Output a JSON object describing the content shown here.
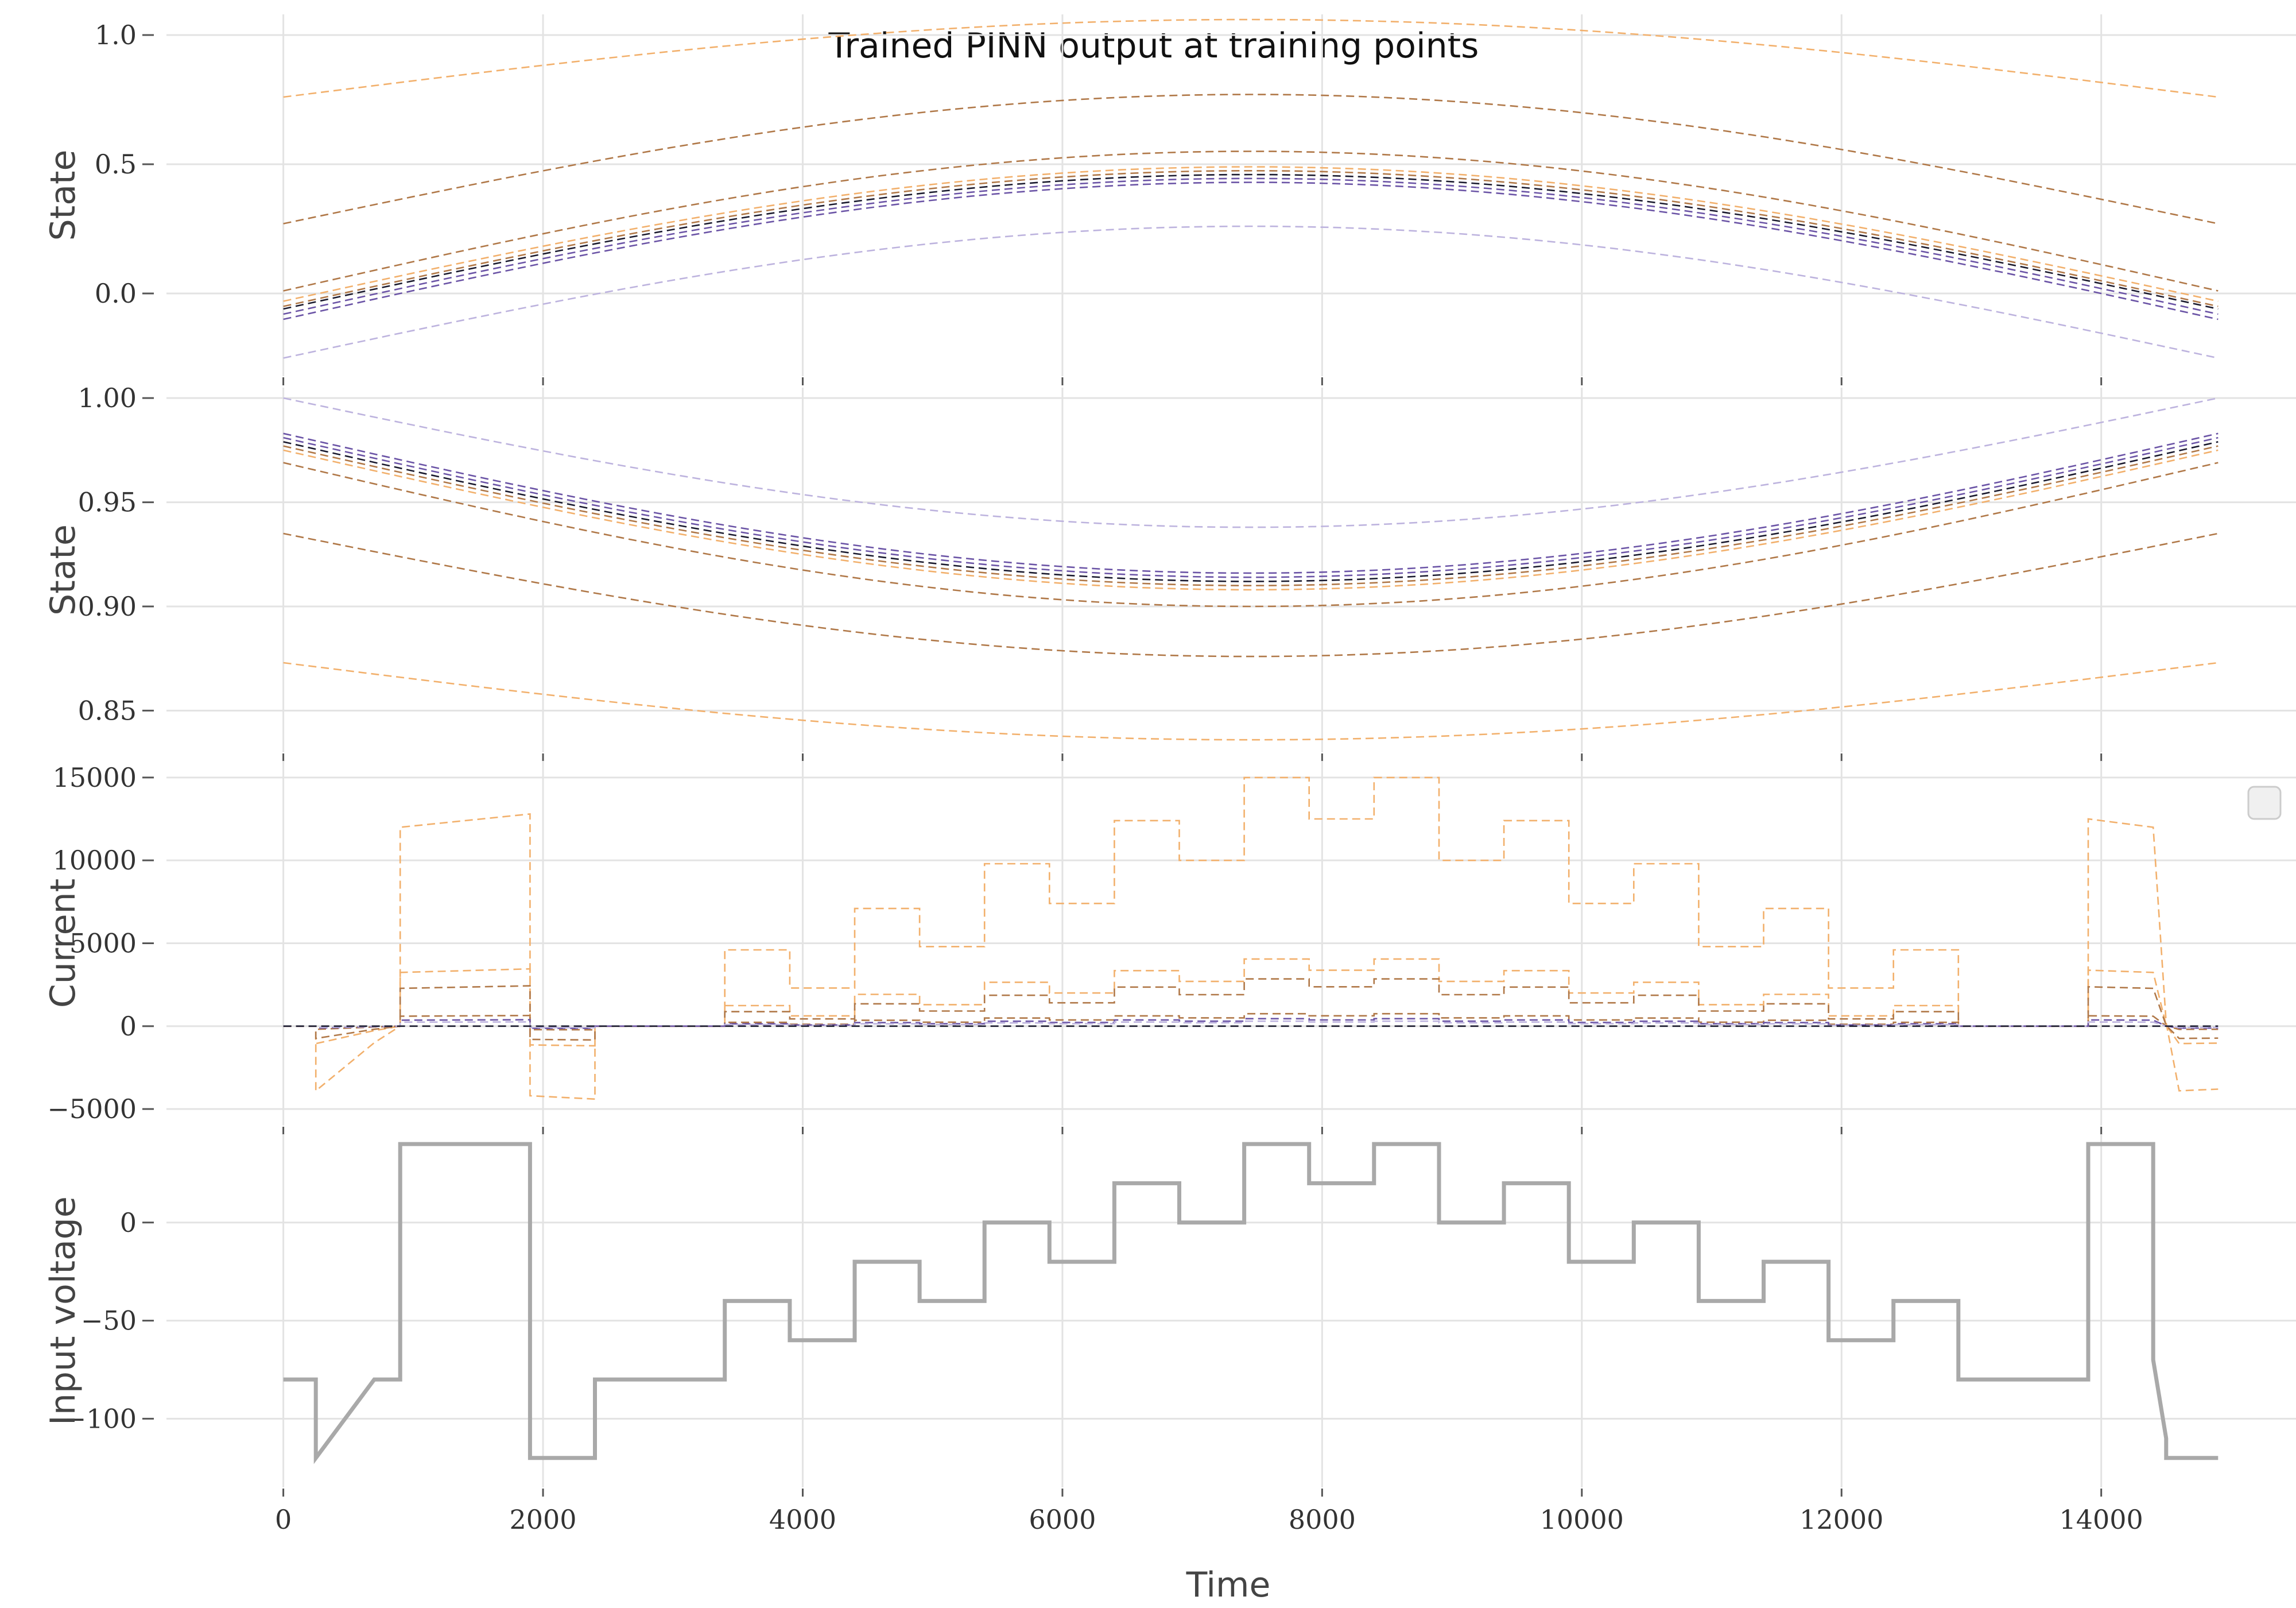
{
  "chart_data": {
    "type": "line",
    "title": "Trained PINN output at training points",
    "xlabel": "Time",
    "xlim": [
      -900,
      15500
    ],
    "x_ticks": [
      "0",
      "2000",
      "4000",
      "6000",
      "8000",
      "10000",
      "12000",
      "14000"
    ],
    "x_tick_values": [
      0,
      2000,
      4000,
      6000,
      8000,
      10000,
      12000,
      14000
    ],
    "grid": true,
    "legend": "empty box, right side of Current panel",
    "colors": [
      "#f2b06c",
      "#b07848",
      "#1a1a2e",
      "#6b54a6",
      "#bdb3de"
    ],
    "panels": [
      {
        "ylabel": "State",
        "ylim": [
          -0.32,
          1.08
        ],
        "y_ticks": [
          "0.0",
          "0.5",
          "1.0"
        ],
        "y_tick_values": [
          0.0,
          0.5,
          1.0
        ],
        "series": [
          {
            "color": "#f2b06c",
            "y0": 0.76,
            "peak": 1.06
          },
          {
            "color": "#b07848",
            "y0": 0.27,
            "peak": 0.77
          },
          {
            "color": "#b07848",
            "y0": 0.01,
            "peak": 0.55
          },
          {
            "color": "#f2b06c",
            "y0": -0.03,
            "peak": 0.49
          },
          {
            "color": "#b07848",
            "y0": -0.05,
            "peak": 0.475
          },
          {
            "color": "#1a1a2e",
            "y0": -0.06,
            "peak": 0.46
          },
          {
            "color": "#6b54a6",
            "y0": -0.08,
            "peak": 0.445
          },
          {
            "color": "#6b54a6",
            "y0": -0.1,
            "peak": 0.43
          },
          {
            "color": "#bdb3de",
            "y0": -0.25,
            "peak": 0.26
          }
        ]
      },
      {
        "ylabel": "State",
        "ylim": [
          0.83,
          1.005
        ],
        "y_ticks": [
          "0.85",
          "0.90",
          "0.95",
          "1.00"
        ],
        "y_tick_values": [
          0.85,
          0.9,
          0.95,
          1.0
        ],
        "series": [
          {
            "color": "#bdb3de",
            "y0": 1.0,
            "trough": 0.938
          },
          {
            "color": "#6b54a6",
            "y0": 0.983,
            "trough": 0.916
          },
          {
            "color": "#6b54a6",
            "y0": 0.981,
            "trough": 0.914
          },
          {
            "color": "#1a1a2e",
            "y0": 0.979,
            "trough": 0.912
          },
          {
            "color": "#b07848",
            "y0": 0.977,
            "trough": 0.91
          },
          {
            "color": "#f2b06c",
            "y0": 0.975,
            "trough": 0.908
          },
          {
            "color": "#b07848",
            "y0": 0.969,
            "trough": 0.9
          },
          {
            "color": "#b07848",
            "y0": 0.935,
            "trough": 0.876
          },
          {
            "color": "#f2b06c",
            "y0": 0.873,
            "trough": 0.836
          }
        ]
      },
      {
        "ylabel": "Current",
        "ylim": [
          -6000,
          16000
        ],
        "y_ticks": [
          "−5000",
          "0",
          "5000",
          "10000",
          "15000"
        ],
        "y_tick_values": [
          -5000,
          0,
          5000,
          10000,
          15000
        ],
        "series": [
          {
            "color": "#f2b06c",
            "scale": 1.0
          },
          {
            "color": "#f2b06c",
            "scale": 0.27
          },
          {
            "color": "#b07848",
            "scale": 0.19
          },
          {
            "color": "#b07848",
            "scale": 0.05
          },
          {
            "color": "#6b54a6",
            "scale": 0.03
          },
          {
            "color": "#bdb3de",
            "scale": 0.02
          },
          {
            "color": "#1a1a2e",
            "scale": 0.0
          }
        ],
        "primary": [
          [
            0,
            0
          ],
          [
            250,
            0
          ],
          [
            250,
            -3900
          ],
          [
            700,
            -1000
          ],
          [
            900,
            0
          ],
          [
            900,
            12000
          ],
          [
            1900,
            12800
          ],
          [
            1900,
            -4200
          ],
          [
            2400,
            -4400
          ],
          [
            2400,
            0
          ],
          [
            3400,
            0
          ],
          [
            3400,
            4600
          ],
          [
            3900,
            4600
          ],
          [
            3900,
            2300
          ],
          [
            4400,
            2300
          ],
          [
            4400,
            7100
          ],
          [
            4900,
            7100
          ],
          [
            4900,
            4800
          ],
          [
            5400,
            4800
          ],
          [
            5400,
            9800
          ],
          [
            5900,
            9800
          ],
          [
            5900,
            7400
          ],
          [
            6400,
            7400
          ],
          [
            6400,
            12400
          ],
          [
            6900,
            12400
          ],
          [
            6900,
            10000
          ],
          [
            7400,
            10000
          ],
          [
            7400,
            15000
          ],
          [
            7900,
            15000
          ],
          [
            7900,
            12500
          ],
          [
            8400,
            12500
          ],
          [
            8400,
            15000
          ],
          [
            8900,
            15000
          ],
          [
            8900,
            10000
          ],
          [
            9400,
            10000
          ],
          [
            9400,
            12400
          ],
          [
            9900,
            12400
          ],
          [
            9900,
            7400
          ],
          [
            10400,
            7400
          ],
          [
            10400,
            9800
          ],
          [
            10900,
            9800
          ],
          [
            10900,
            4800
          ],
          [
            11400,
            4800
          ],
          [
            11400,
            7100
          ],
          [
            11900,
            7100
          ],
          [
            11900,
            2300
          ],
          [
            12400,
            2300
          ],
          [
            12400,
            4600
          ],
          [
            12900,
            4600
          ],
          [
            12900,
            0
          ],
          [
            13900,
            0
          ],
          [
            13900,
            12500
          ],
          [
            14400,
            12000
          ],
          [
            14500,
            200
          ],
          [
            14600,
            -3900
          ],
          [
            14900,
            -3800
          ]
        ]
      },
      {
        "ylabel": "Input voltage",
        "ylim": [
          -135,
          45
        ],
        "y_ticks": [
          "−100",
          "−50",
          "0"
        ],
        "y_tick_values": [
          -100,
          -50,
          0
        ],
        "series": [
          {
            "color": "#a9a9a9",
            "points": [
              [
                0,
                -80
              ],
              [
                250,
                -80
              ],
              [
                250,
                -120
              ],
              [
                700,
                -80
              ],
              [
                900,
                -80
              ],
              [
                900,
                40
              ],
              [
                1900,
                40
              ],
              [
                1900,
                -120
              ],
              [
                2400,
                -120
              ],
              [
                2400,
                -80
              ],
              [
                3400,
                -80
              ],
              [
                3400,
                -40
              ],
              [
                3900,
                -40
              ],
              [
                3900,
                -60
              ],
              [
                4400,
                -60
              ],
              [
                4400,
                -20
              ],
              [
                4900,
                -20
              ],
              [
                4900,
                -40
              ],
              [
                5400,
                -40
              ],
              [
                5400,
                0
              ],
              [
                5900,
                0
              ],
              [
                5900,
                -20
              ],
              [
                6400,
                -20
              ],
              [
                6400,
                20
              ],
              [
                6900,
                20
              ],
              [
                6900,
                0
              ],
              [
                7400,
                0
              ],
              [
                7400,
                40
              ],
              [
                7900,
                40
              ],
              [
                7900,
                20
              ],
              [
                8400,
                20
              ],
              [
                8400,
                40
              ],
              [
                8900,
                40
              ],
              [
                8900,
                0
              ],
              [
                9400,
                0
              ],
              [
                9400,
                20
              ],
              [
                9900,
                20
              ],
              [
                9900,
                -20
              ],
              [
                10400,
                -20
              ],
              [
                10400,
                0
              ],
              [
                10900,
                0
              ],
              [
                10900,
                -40
              ],
              [
                11400,
                -40
              ],
              [
                11400,
                -20
              ],
              [
                11900,
                -20
              ],
              [
                11900,
                -60
              ],
              [
                12400,
                -60
              ],
              [
                12400,
                -40
              ],
              [
                12900,
                -40
              ],
              [
                12900,
                -80
              ],
              [
                13900,
                -80
              ],
              [
                13900,
                40
              ],
              [
                14400,
                40
              ],
              [
                14400,
                -70
              ],
              [
                14500,
                -110
              ],
              [
                14500,
                -120
              ],
              [
                14900,
                -120
              ]
            ]
          }
        ]
      }
    ]
  }
}
